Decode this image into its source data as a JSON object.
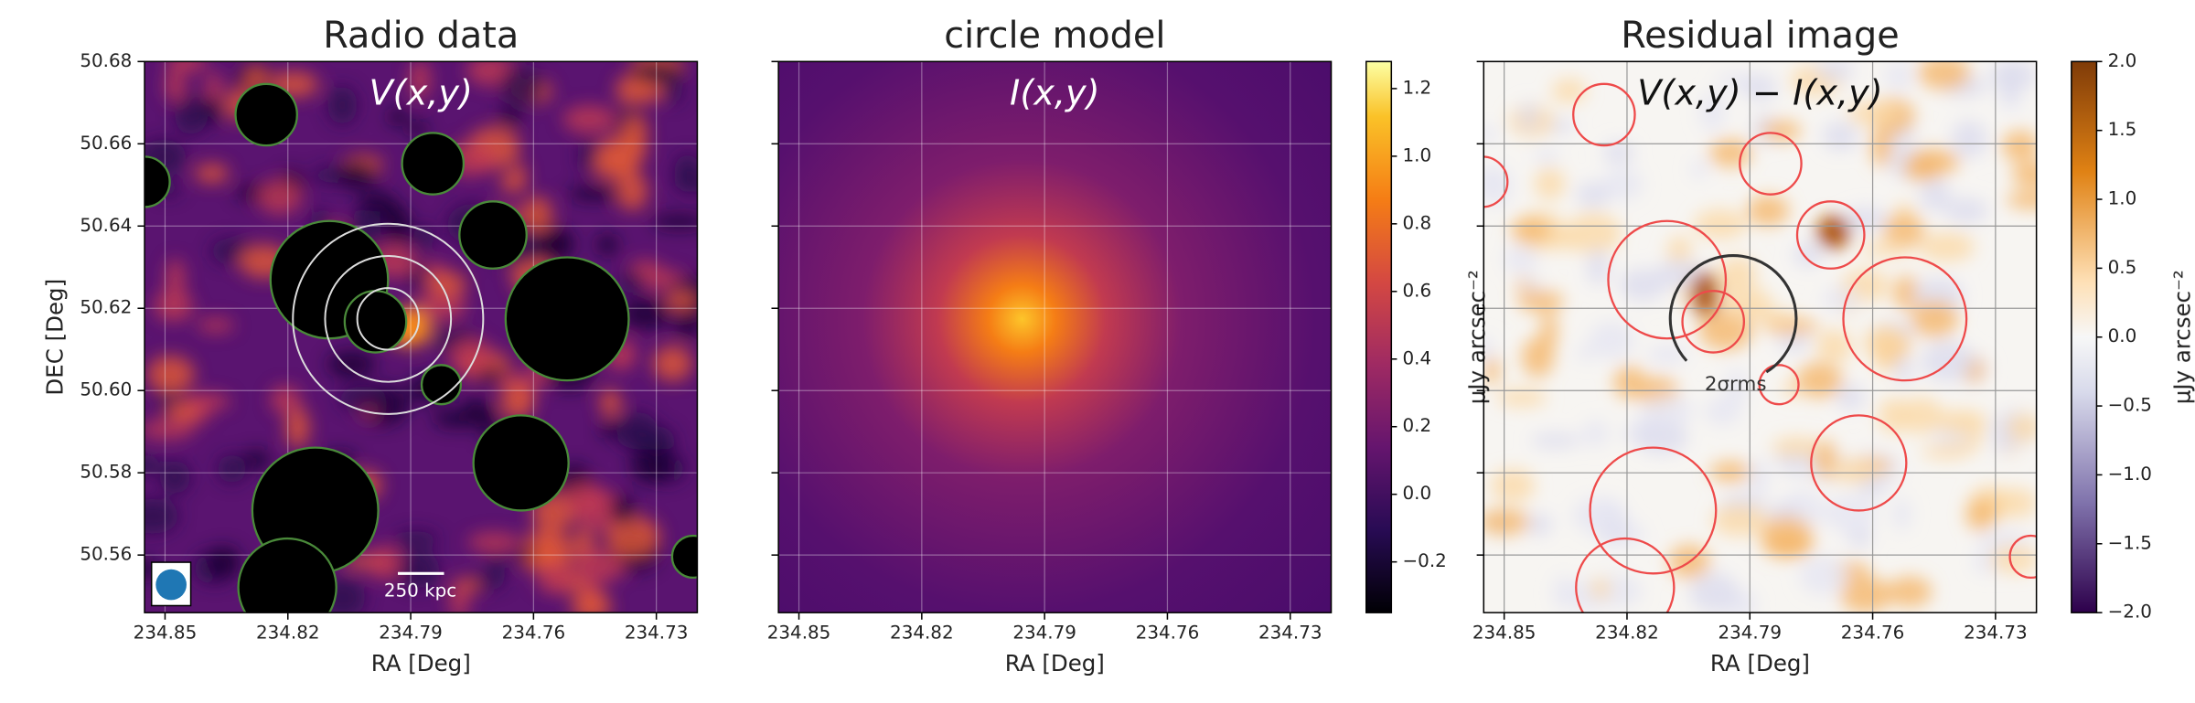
{
  "chart_data": [
    {
      "type": "image",
      "title": "Radio data",
      "annotation": "V(x,y)",
      "xlabel": "RA [Deg]",
      "ylabel": "DEC [Deg]",
      "xlim": [
        234.855,
        234.72
      ],
      "xticks": [
        234.85,
        234.82,
        234.79,
        234.76,
        234.73
      ],
      "ylim": [
        50.546,
        50.68
      ],
      "yticks": [
        50.56,
        50.58,
        {
          "value": 50.6,
          "label": "50.60"
        },
        50.62,
        50.64,
        50.66,
        50.68
      ],
      "grid": true,
      "scalebar_label": "250 kpc"
    },
    {
      "type": "image",
      "title": "circle model",
      "annotation": "I(x,y)",
      "xlabel": "RA [Deg]",
      "xlim": [
        234.855,
        234.72
      ],
      "xticks": [
        234.85,
        234.82,
        234.79,
        234.76,
        234.73
      ],
      "grid": true,
      "colorbar": {
        "label": "μJy arcsec⁻²",
        "lim": [
          -0.35,
          1.28
        ],
        "ticks": [
          {
            "value": -0.2,
            "label": "−0.2"
          },
          {
            "value": 0,
            "label": "0.0"
          },
          0.2,
          0.4,
          0.6,
          0.8,
          {
            "value": 1,
            "label": "1.0"
          },
          1.2
        ]
      }
    },
    {
      "type": "image",
      "title": "Residual image",
      "annotation": "V(x,y) − I(x,y)",
      "xlabel": "RA [Deg]",
      "xlim": [
        234.855,
        234.72
      ],
      "xticks": [
        234.85,
        234.82,
        234.79,
        234.76,
        234.73
      ],
      "grid": true,
      "circle_label": "2σrms",
      "colorbar": {
        "label": "μJy arcsec⁻²",
        "lim": [
          -2,
          2
        ],
        "ticks": [
          {
            "value": -2,
            "label": "−2.0"
          },
          {
            "value": -1.5,
            "label": "−1.5"
          },
          {
            "value": -1,
            "label": "−1.0"
          },
          {
            "value": -0.5,
            "label": "−0.5"
          },
          {
            "value": 0,
            "label": "0.0"
          },
          0.5,
          {
            "value": 1,
            "label": "1.0"
          },
          1.5,
          {
            "value": 2,
            "label": "2.0"
          }
        ]
      }
    }
  ]
}
